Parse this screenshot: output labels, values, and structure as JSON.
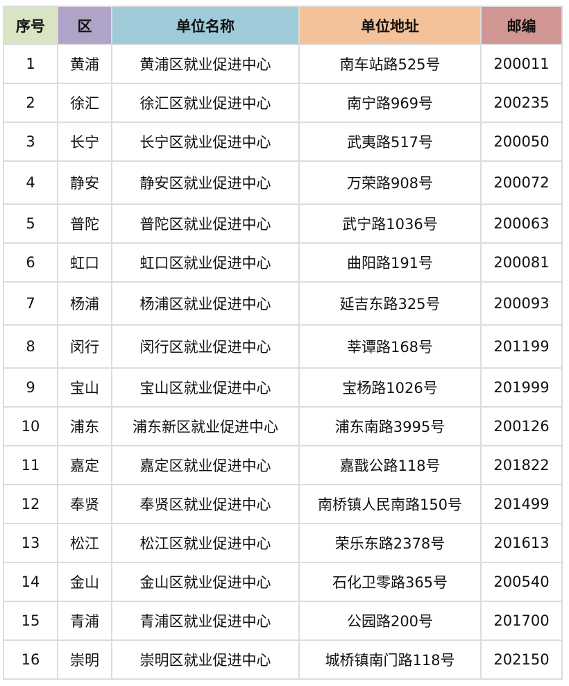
{
  "header_colors": [
    "#d8e4c4",
    "#b0a3c8",
    "#9fcbd9",
    "#f3c29b",
    "#d19594"
  ],
  "headers": [
    "序号",
    "区",
    "单位名称",
    "单位地址",
    "邮编"
  ],
  "rows": [
    [
      "1",
      "黄浦",
      "黄浦区就业促进中心",
      "南车站路525号",
      "200011"
    ],
    [
      "2",
      "徐汇",
      "徐汇区就业促进中心",
      "南宁路969号",
      "200235"
    ],
    [
      "3",
      "长宁",
      "长宁区就业促进中心",
      "武夷路517号",
      "200050"
    ],
    [
      "4",
      "静安",
      "静安区就业促进中心",
      "万荣路908号",
      "200072"
    ],
    [
      "5",
      "普陀",
      "普陀区就业促进中心",
      "武宁路1036号",
      "200063"
    ],
    [
      "6",
      "虹口",
      "虹口区就业促进中心",
      "曲阳路191号",
      "200081"
    ],
    [
      "7",
      "杨浦",
      "杨浦区就业促进中心",
      "延吉东路325号",
      "200093"
    ],
    [
      "8",
      "闵行",
      "闵行区就业促进中心",
      "莘谭路168号",
      "201199"
    ],
    [
      "9",
      "宝山",
      "宝山区就业促进中心",
      "宝杨路1026号",
      "201999"
    ],
    [
      "10",
      "浦东",
      "浦东新区就业促进中心",
      "浦东南路3995号",
      "200126"
    ],
    [
      "11",
      "嘉定",
      "嘉定区就业促进中心",
      "嘉戬公路118号",
      "201822"
    ],
    [
      "12",
      "奉贤",
      "奉贤区就业促进中心",
      "南桥镇人民南路150号",
      "201499"
    ],
    [
      "13",
      "松江",
      "松江区就业促进中心",
      "荣乐东路2378号",
      "201613"
    ],
    [
      "14",
      "金山",
      "金山区就业促进中心",
      "石化卫零路365号",
      "200540"
    ],
    [
      "15",
      "青浦",
      "青浦区就业促进中心",
      "公园路200号",
      "201700"
    ],
    [
      "16",
      "崇明",
      "崇明区就业促进中心",
      "城桥镇南门路118号",
      "202150"
    ]
  ]
}
